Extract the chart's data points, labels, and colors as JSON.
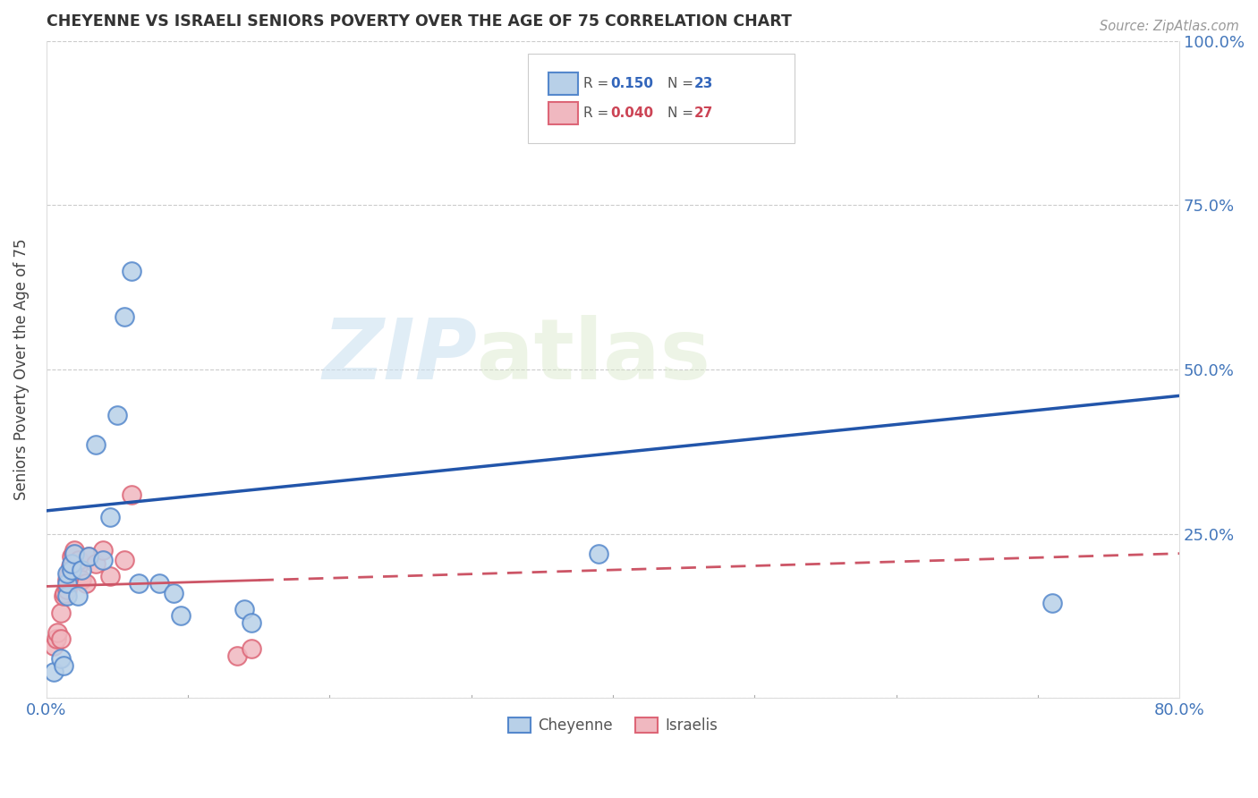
{
  "title": "CHEYENNE VS ISRAELI SENIORS POVERTY OVER THE AGE OF 75 CORRELATION CHART",
  "source": "Source: ZipAtlas.com",
  "ylabel": "Seniors Poverty Over the Age of 75",
  "xlim": [
    0.0,
    0.8
  ],
  "ylim": [
    0.0,
    1.0
  ],
  "ytick_labels_right": [
    "",
    "25.0%",
    "50.0%",
    "75.0%",
    "100.0%"
  ],
  "ytick_vals_right": [
    0.0,
    0.25,
    0.5,
    0.75,
    1.0
  ],
  "cheyenne_color": "#b8d0e8",
  "cheyenne_edge": "#5588cc",
  "israelis_color": "#f0b8c0",
  "israelis_edge": "#dd6677",
  "line_cheyenne_color": "#2255aa",
  "line_israelis_color": "#cc5566",
  "watermark_zip": "ZIP",
  "watermark_atlas": "atlas",
  "cheyenne_x": [
    0.005,
    0.01,
    0.012,
    0.015,
    0.015,
    0.015,
    0.018,
    0.018,
    0.02,
    0.022,
    0.025,
    0.03,
    0.035,
    0.04,
    0.045,
    0.05,
    0.055,
    0.06,
    0.065,
    0.08,
    0.09,
    0.095,
    0.14,
    0.145,
    0.39,
    0.71
  ],
  "cheyenne_y": [
    0.04,
    0.06,
    0.05,
    0.155,
    0.175,
    0.19,
    0.195,
    0.205,
    0.22,
    0.155,
    0.195,
    0.215,
    0.385,
    0.21,
    0.275,
    0.43,
    0.58,
    0.65,
    0.175,
    0.175,
    0.16,
    0.125,
    0.135,
    0.115,
    0.22,
    0.145
  ],
  "israelis_x": [
    0.005,
    0.007,
    0.008,
    0.01,
    0.01,
    0.012,
    0.013,
    0.015,
    0.015,
    0.016,
    0.017,
    0.018,
    0.019,
    0.02,
    0.02,
    0.022,
    0.023,
    0.025,
    0.028,
    0.03,
    0.035,
    0.04,
    0.045,
    0.055,
    0.06,
    0.135,
    0.145
  ],
  "israelis_y": [
    0.08,
    0.09,
    0.1,
    0.09,
    0.13,
    0.155,
    0.16,
    0.165,
    0.18,
    0.19,
    0.2,
    0.215,
    0.22,
    0.195,
    0.225,
    0.2,
    0.21,
    0.18,
    0.175,
    0.215,
    0.205,
    0.225,
    0.185,
    0.21,
    0.31,
    0.065,
    0.075
  ],
  "line_cheyenne_x0": 0.0,
  "line_cheyenne_y0": 0.285,
  "line_cheyenne_x1": 0.8,
  "line_cheyenne_y1": 0.46,
  "line_israelis_x0": 0.0,
  "line_israelis_y0": 0.17,
  "line_israelis_x1": 0.8,
  "line_israelis_y1": 0.22,
  "line_israelis_solid_end": 0.15
}
